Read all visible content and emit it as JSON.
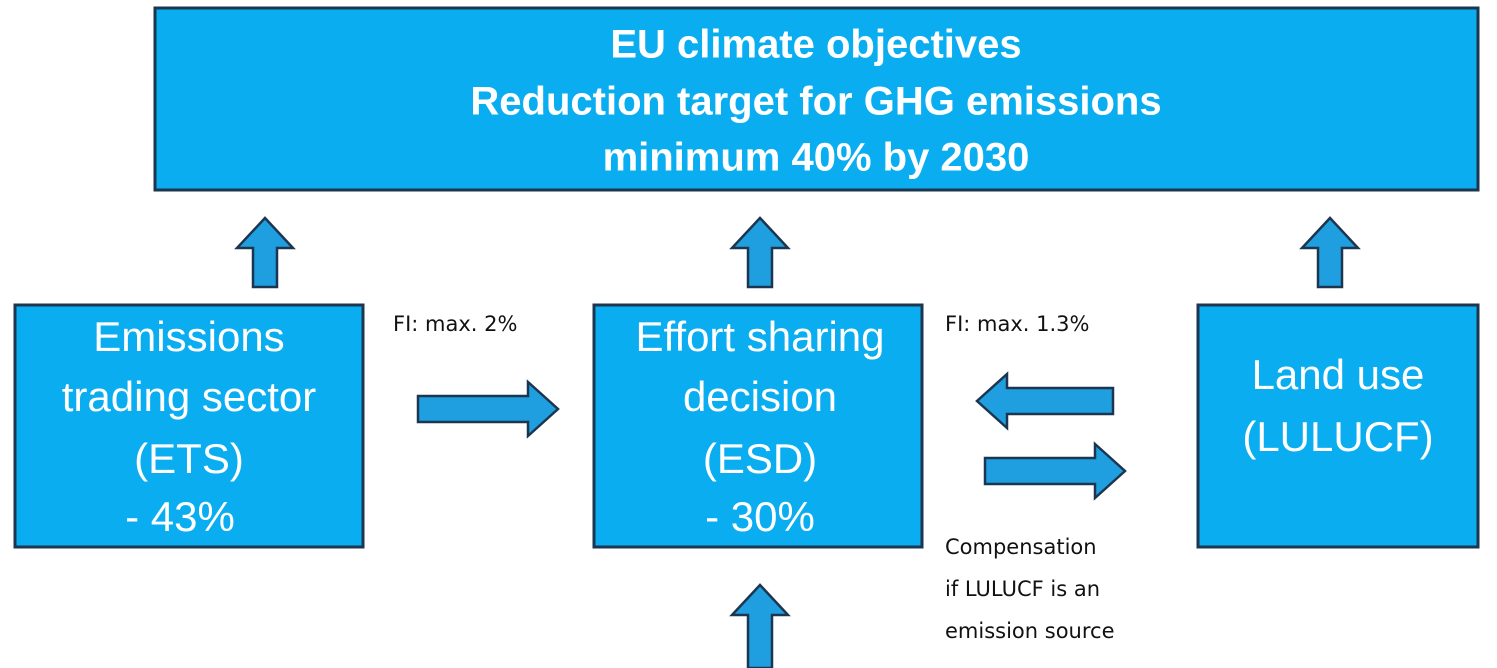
{
  "header": {
    "lines": [
      "EU climate objectives",
      "Reduction target for GHG emissions",
      "minimum 40% by  2030"
    ]
  },
  "boxes": [
    {
      "lines": [
        "Emissions",
        "trading sector",
        "(ETS)",
        "-  43%"
      ]
    },
    {
      "lines": [
        "Effort sharing",
        "decision",
        "(ESD)",
        "- 30%"
      ]
    },
    {
      "lines": [
        "Land use",
        "(LULUCF)"
      ]
    }
  ],
  "labels": {
    "ets_to_esd": "FI: max. 2%",
    "lulucf_to_esd": "FI: max. 1.3%",
    "compensation": [
      "Compensation",
      "if LULUCF is an",
      " emission source"
    ]
  }
}
